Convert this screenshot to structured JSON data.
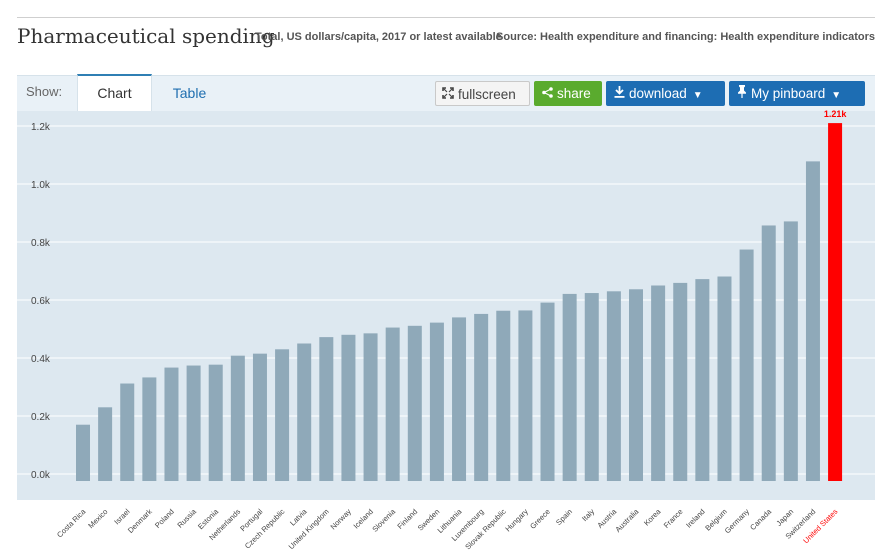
{
  "header": {
    "title": "Pharmaceutical spending",
    "subtitle": "Total, US dollars/capita, 2017 or latest available",
    "source": "Source: Health expenditure and financing: Health expenditure indicators"
  },
  "toolbar": {
    "show_label": "Show:",
    "tabs": [
      {
        "label": "Chart"
      },
      {
        "label": "Table"
      }
    ],
    "fullscreen_label": "fullscreen",
    "share_label": "share",
    "download_label": "download",
    "pinboard_label": "My pinboard"
  },
  "colors": {
    "bar": "#8fa9b9",
    "highlight": "#ff0000",
    "plot_bg": "#dde8f0",
    "grid": "#ffffff"
  },
  "chart_data": {
    "type": "bar",
    "title": "Pharmaceutical spending",
    "subtitle": "Total, US dollars/capita, 2017 or latest available",
    "xlabel": "",
    "ylabel": "",
    "ylim": [
      0,
      1200
    ],
    "yticks": [
      0,
      200,
      400,
      600,
      800,
      1000,
      1200
    ],
    "ytick_labels": [
      "0.0k",
      "0.2k",
      "0.4k",
      "0.6k",
      "0.8k",
      "1.0k",
      "1.2k"
    ],
    "categories": [
      "Costa Rica",
      "Mexico",
      "Israel",
      "Denmark",
      "Poland",
      "Russia",
      "Estonia",
      "Netherlands",
      "Portugal",
      "Czech Republic",
      "Latvia",
      "United Kingdom",
      "Norway",
      "Iceland",
      "Slovenia",
      "Finland",
      "Sweden",
      "Lithuania",
      "Luxembourg",
      "Slovak Republic",
      "Hungary",
      "Greece",
      "Spain",
      "Italy",
      "Austria",
      "Australia",
      "Korea",
      "France",
      "Ireland",
      "Belgium",
      "Germany",
      "Canada",
      "Japan",
      "Switzerland",
      "United States"
    ],
    "values": [
      170,
      230,
      312,
      333,
      367,
      374,
      377,
      408,
      415,
      430,
      450,
      472,
      480,
      485,
      505,
      511,
      522,
      540,
      552,
      563,
      564,
      591,
      621,
      624,
      630,
      637,
      650,
      659,
      672,
      681,
      774,
      857,
      871,
      1078,
      1210
    ],
    "highlight": {
      "category": "United States",
      "label": "1.21k"
    }
  }
}
